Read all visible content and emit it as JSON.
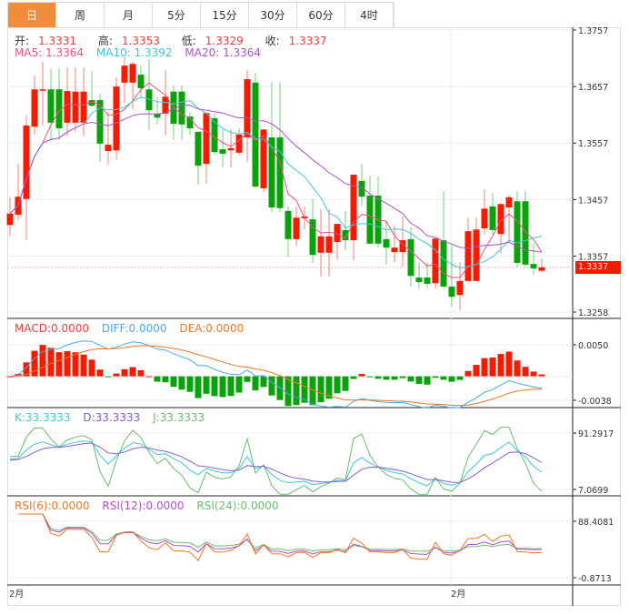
{
  "tabs": [
    "日",
    "周",
    "月",
    "5分",
    "15分",
    "30分",
    "60分",
    "4时"
  ],
  "active_tab": 0,
  "ohlc_legend": {
    "open_label": "开:",
    "open": "1.3331",
    "high_label": "高:",
    "high": "1.3353",
    "low_label": "低:",
    "low": "1.3329",
    "close_label": "收:",
    "close": "1.3337"
  },
  "ma_legend": {
    "ma5": "MA5: 1.3364",
    "ma10": "MA10: 1.3392",
    "ma20": "MA20: 1.3364"
  },
  "macd_legend": {
    "macd": "MACD:0.0000",
    "diff": "DIFF:0.0000",
    "dea": "DEA:0.0000"
  },
  "kdj_legend": {
    "k": "K:33.3333",
    "d": "D:33.3333",
    "j": "J:33.3333"
  },
  "rsi_legend": {
    "rsi6": "RSI(6):0.0000",
    "rsi12": "RSI(12):0.0000",
    "rsi24": "RSI(24):0.0000"
  },
  "current_price": "1.3337",
  "colors": {
    "up": "#f51a00",
    "down": "#0aa20a",
    "accent": "#f08c3c",
    "ma5": "#f0507a",
    "ma10": "#3cc8dc",
    "ma20": "#b050c8",
    "diff": "#4aa8f0",
    "dea": "#f07820",
    "k": "#3cc8dc",
    "d": "#8a5cd0",
    "j": "#6cbc6c",
    "rsi6": "#f07820",
    "rsi12": "#b050c8",
    "rsi24": "#6cbc6c"
  },
  "chart_data": {
    "type": "candlestick",
    "title": "",
    "price_axis": {
      "ticks": [
        "1.3757",
        "1.3657",
        "1.3557",
        "1.3457",
        "1.3357",
        "1.3258"
      ],
      "ylim": [
        1.3258,
        1.3757
      ]
    },
    "macd_axis": {
      "ticks": [
        "0.0050",
        "-0.0038"
      ],
      "ylim": [
        -0.0038,
        0.005
      ]
    },
    "kdj_axis": {
      "ticks": [
        "91.2917",
        "7.0699"
      ],
      "ylim": [
        7.0699,
        91.2917
      ]
    },
    "rsi_axis": {
      "ticks": [
        "88.4081",
        "-0.8713"
      ],
      "ylim": [
        -0.8713,
        88.4081
      ]
    },
    "x_labels": [
      {
        "index": 0,
        "label": "2月"
      },
      {
        "index": 54,
        "label": "2月"
      }
    ],
    "ohlc": [
      [
        1.3412,
        1.3461,
        1.3392,
        1.3432
      ],
      [
        1.343,
        1.352,
        1.3421,
        1.3462
      ],
      [
        1.3458,
        1.3606,
        1.3385,
        1.3588
      ],
      [
        1.3586,
        1.3676,
        1.3572,
        1.3652
      ],
      [
        1.3651,
        1.3701,
        1.3588,
        1.3652
      ],
      [
        1.3652,
        1.3689,
        1.3561,
        1.3593
      ],
      [
        1.3652,
        1.3689,
        1.3562,
        1.3583
      ],
      [
        1.3593,
        1.3691,
        1.3569,
        1.3649
      ],
      [
        1.3593,
        1.3691,
        1.3577,
        1.3648
      ],
      [
        1.3593,
        1.3691,
        1.3569,
        1.3648
      ],
      [
        1.3633,
        1.3685,
        1.362,
        1.3623
      ],
      [
        1.3633,
        1.3644,
        1.3524,
        1.3556
      ],
      [
        1.3543,
        1.3612,
        1.3519,
        1.3554
      ],
      [
        1.3544,
        1.3673,
        1.3528,
        1.3657
      ],
      [
        1.3664,
        1.3709,
        1.3628,
        1.3694
      ],
      [
        1.3664,
        1.3701,
        1.3617,
        1.3697
      ],
      [
        1.3678,
        1.3694,
        1.3638,
        1.3654
      ],
      [
        1.3652,
        1.3705,
        1.358,
        1.3615
      ],
      [
        1.3609,
        1.3638,
        1.359,
        1.3602
      ],
      [
        1.3609,
        1.3686,
        1.357,
        1.3639
      ],
      [
        1.3648,
        1.3659,
        1.3562,
        1.3591
      ],
      [
        1.3648,
        1.3659,
        1.3562,
        1.359
      ],
      [
        1.3604,
        1.3612,
        1.3572,
        1.3583
      ],
      [
        1.3577,
        1.3577,
        1.3483,
        1.3517
      ],
      [
        1.352,
        1.361,
        1.3485,
        1.361
      ],
      [
        1.3601,
        1.3609,
        1.3536,
        1.3541
      ],
      [
        1.3546,
        1.3581,
        1.3514,
        1.3538
      ],
      [
        1.3544,
        1.3581,
        1.3514,
        1.3548
      ],
      [
        1.354,
        1.3583,
        1.3535,
        1.3572
      ],
      [
        1.3567,
        1.3686,
        1.3524,
        1.367
      ],
      [
        1.3664,
        1.3681,
        1.3477,
        1.348
      ],
      [
        1.3477,
        1.3581,
        1.347,
        1.3581
      ],
      [
        1.3567,
        1.3665,
        1.3435,
        1.3443
      ],
      [
        1.3567,
        1.3665,
        1.3435,
        1.3442
      ],
      [
        1.3437,
        1.3445,
        1.3356,
        1.3387
      ],
      [
        1.3387,
        1.3445,
        1.3375,
        1.3425
      ],
      [
        1.3424,
        1.3445,
        1.3404,
        1.3427
      ],
      [
        1.3422,
        1.3458,
        1.3345,
        1.3359
      ],
      [
        1.3363,
        1.344,
        1.3321,
        1.3392
      ],
      [
        1.3363,
        1.344,
        1.3321,
        1.3392
      ],
      [
        1.3382,
        1.3414,
        1.3351,
        1.3414
      ],
      [
        1.3403,
        1.3437,
        1.3367,
        1.3385
      ],
      [
        1.3385,
        1.3501,
        1.335,
        1.3501
      ],
      [
        1.349,
        1.352,
        1.3446,
        1.3462
      ],
      [
        1.3464,
        1.3499,
        1.3379,
        1.3379
      ],
      [
        1.3464,
        1.3499,
        1.3372,
        1.3379
      ],
      [
        1.3387,
        1.3419,
        1.3342,
        1.3372
      ],
      [
        1.3364,
        1.3412,
        1.3346,
        1.3372
      ],
      [
        1.3364,
        1.3427,
        1.3338,
        1.3385
      ],
      [
        1.3387,
        1.3408,
        1.3303,
        1.3322
      ],
      [
        1.3319,
        1.3346,
        1.33,
        1.3311
      ],
      [
        1.3319,
        1.3346,
        1.33,
        1.3308
      ],
      [
        1.3309,
        1.3388,
        1.33,
        1.3388
      ],
      [
        1.3385,
        1.3472,
        1.33,
        1.3303
      ],
      [
        1.3303,
        1.3375,
        1.3268,
        1.3285
      ],
      [
        1.3288,
        1.3346,
        1.3261,
        1.3313
      ],
      [
        1.3313,
        1.3425,
        1.3313,
        1.3401
      ],
      [
        1.3313,
        1.3425,
        1.3313,
        1.3404
      ],
      [
        1.3406,
        1.3475,
        1.3396,
        1.3441
      ],
      [
        1.3445,
        1.3469,
        1.3395,
        1.3403
      ],
      [
        1.3396,
        1.3451,
        1.3361,
        1.3449
      ],
      [
        1.3443,
        1.3464,
        1.3382,
        1.3461
      ],
      [
        1.3454,
        1.3472,
        1.3338,
        1.3345
      ],
      [
        1.3454,
        1.3472,
        1.3338,
        1.3342
      ],
      [
        1.3343,
        1.3379,
        1.3324,
        1.3335
      ],
      [
        1.3331,
        1.3353,
        1.3329,
        1.3337
      ]
    ]
  }
}
